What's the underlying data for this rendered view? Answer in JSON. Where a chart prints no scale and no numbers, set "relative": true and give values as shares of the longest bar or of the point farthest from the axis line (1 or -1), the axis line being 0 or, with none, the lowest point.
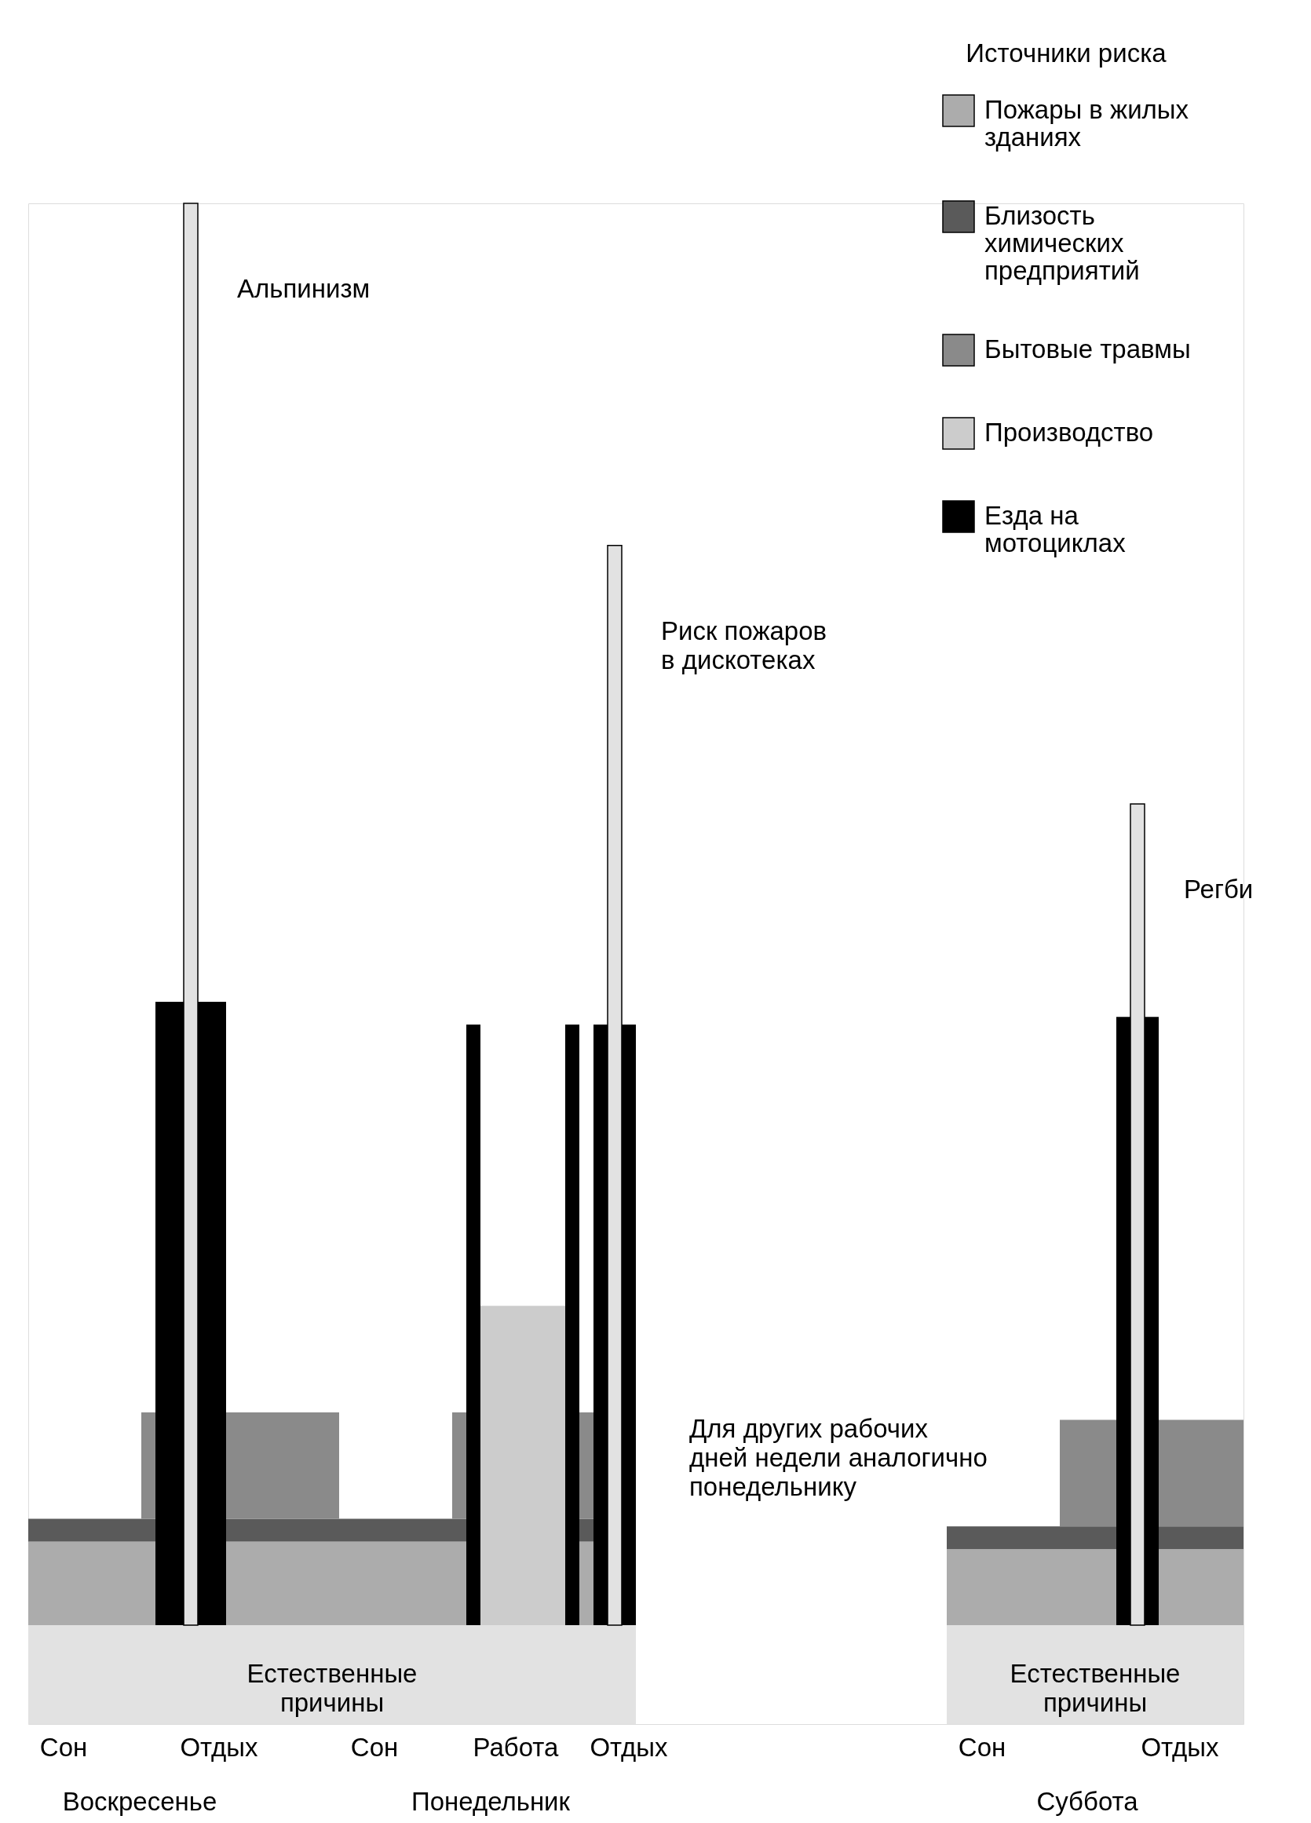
{
  "chart_data": {
    "type": "bar",
    "relative": true,
    "stacked": true,
    "legend": "top right",
    "legend_title": "Источники риска",
    "annotations": [
      "Для других рабочих дней недели аналогично понедельнику",
      "Воскресенье",
      "Понедельник",
      "Суббота"
    ],
    "categories": [
      null,
      null,
      "Сон",
      null,
      null,
      null,
      null,
      null,
      null,
      null,
      null,
      null,
      null,
      "Отдых",
      null,
      null,
      null,
      null,
      null,
      null,
      null,
      null,
      null,
      null,
      "Сон",
      null,
      null,
      null,
      null,
      null,
      null,
      null,
      null,
      null,
      "Работа",
      null,
      null,
      null,
      null,
      null,
      null,
      null,
      "Отдых",
      null,
      null,
      null,
      null,
      null,
      null,
      null,
      null,
      null,
      null,
      null,
      null,
      null,
      null,
      null,
      null,
      null,
      null,
      null,
      null,
      null,
      null,
      null,
      null,
      "Сон",
      null,
      null,
      null,
      null,
      null,
      null,
      null,
      null,
      null,
      null,
      null,
      null,
      null,
      "Отдых",
      null,
      null,
      null,
      null
    ],
    "series": [
      {
        "name": "Естественные причины",
        "color": "#e2e2e2",
        "values": [
          0.065,
          0.065,
          0.065,
          0.065,
          0.065,
          0.065,
          0.065,
          0.065,
          0.065,
          0.065,
          0.065,
          0.065,
          0.065,
          0.065,
          0.065,
          0.065,
          0.065,
          0.065,
          0.065,
          0.065,
          0.065,
          0.065,
          0.065,
          0.065,
          0.065,
          0.065,
          0.065,
          0.065,
          0.065,
          0.065,
          0.065,
          0.065,
          0.065,
          0.065,
          0.065,
          0.065,
          0.065,
          0.065,
          0.065,
          0.065,
          0.065,
          0.065,
          0.065,
          null,
          null,
          null,
          null,
          null,
          null,
          null,
          null,
          null,
          null,
          null,
          null,
          null,
          null,
          null,
          null,
          null,
          null,
          null,
          null,
          null,
          null,
          0.065,
          0.065,
          0.065,
          0.065,
          0.065,
          0.065,
          0.065,
          0.065,
          0.065,
          0.065,
          0.065,
          0.065,
          0.065,
          0.065,
          0.065,
          0.065,
          0.065,
          0.065,
          0.065,
          0.065,
          0.065
        ]
      },
      {
        "name": "Пожары в жилых зданиях",
        "color": "#acacac",
        "values": [
          0.055,
          0.055,
          0.055,
          0.055,
          0.055,
          0.055,
          0.055,
          0.055,
          0.055,
          null,
          null,
          null,
          null,
          null,
          0.055,
          0.055,
          0.055,
          0.055,
          0.055,
          0.055,
          0.055,
          0.055,
          0.055,
          0.055,
          0.055,
          0.055,
          0.055,
          0.055,
          0.055,
          0.055,
          0.055,
          null,
          null,
          null,
          null,
          null,
          null,
          null,
          null,
          0.055,
          null,
          null,
          null,
          null,
          null,
          null,
          null,
          null,
          null,
          null,
          null,
          null,
          null,
          null,
          null,
          null,
          null,
          null,
          null,
          null,
          null,
          null,
          null,
          null,
          null,
          0.05,
          0.05,
          0.05,
          0.05,
          0.05,
          0.05,
          0.05,
          0.05,
          0.05,
          0.05,
          0.05,
          0.05,
          null,
          null,
          null,
          0.05,
          0.05,
          0.05,
          0.05,
          0.05,
          0.05
        ]
      },
      {
        "name": "Близость химических предприятий",
        "color": "#5a5a5a",
        "values": [
          0.015,
          0.015,
          0.015,
          0.015,
          0.015,
          0.015,
          0.015,
          0.015,
          0.015,
          null,
          null,
          null,
          null,
          null,
          0.015,
          0.015,
          0.015,
          0.015,
          0.015,
          0.015,
          0.015,
          0.015,
          0.015,
          0.015,
          0.015,
          0.015,
          0.015,
          0.015,
          0.015,
          0.015,
          0.015,
          null,
          null,
          null,
          null,
          null,
          null,
          null,
          null,
          0.015,
          null,
          null,
          null,
          null,
          null,
          null,
          null,
          null,
          null,
          null,
          null,
          null,
          null,
          null,
          null,
          null,
          null,
          null,
          null,
          null,
          null,
          null,
          null,
          null,
          null,
          0.015,
          0.015,
          0.015,
          0.015,
          0.015,
          0.015,
          0.015,
          0.015,
          0.015,
          0.015,
          0.015,
          0.015,
          null,
          null,
          null,
          0.015,
          0.015,
          0.015,
          0.015,
          0.015,
          0.015
        ]
      },
      {
        "name": "Бытовые травмы",
        "color": "#8a8a8a",
        "values": [
          null,
          null,
          null,
          null,
          null,
          null,
          null,
          null,
          0.07,
          null,
          null,
          null,
          null,
          null,
          0.07,
          0.07,
          0.07,
          0.07,
          0.07,
          0.07,
          0.07,
          0.07,
          null,
          null,
          null,
          null,
          null,
          null,
          null,
          null,
          0.07,
          null,
          null,
          null,
          null,
          null,
          null,
          null,
          null,
          0.07,
          null,
          null,
          null,
          null,
          null,
          null,
          null,
          null,
          null,
          null,
          null,
          null,
          null,
          null,
          null,
          null,
          null,
          null,
          null,
          null,
          null,
          null,
          null,
          null,
          null,
          null,
          null,
          null,
          null,
          null,
          null,
          null,
          null,
          0.07,
          0.07,
          0.07,
          0.07,
          null,
          null,
          null,
          0.07,
          0.07,
          0.07,
          0.07,
          0.07,
          0.07
        ]
      },
      {
        "name": "Производство",
        "color": "#cccccc",
        "values": [
          null,
          null,
          null,
          null,
          null,
          null,
          null,
          null,
          null,
          null,
          null,
          null,
          null,
          null,
          null,
          null,
          null,
          null,
          null,
          null,
          null,
          null,
          null,
          null,
          null,
          null,
          null,
          null,
          null,
          null,
          null,
          null,
          0.21,
          0.21,
          0.21,
          0.21,
          0.21,
          0.21,
          null,
          null,
          null,
          null,
          null,
          null,
          null,
          null,
          null,
          null,
          null,
          null,
          null,
          null,
          null,
          null,
          null,
          null,
          null,
          null,
          null,
          null,
          null,
          null,
          null,
          null,
          null,
          null,
          null,
          null,
          null,
          null,
          null,
          null,
          null,
          null,
          null,
          null,
          null,
          null,
          null,
          null,
          null,
          null,
          null,
          null,
          null,
          null
        ]
      },
      {
        "name": "Езда на мотоциклах",
        "color": "#000000",
        "values": [
          null,
          null,
          null,
          null,
          null,
          null,
          null,
          null,
          null,
          0.41,
          0.41,
          null,
          0.41,
          0.41,
          null,
          null,
          null,
          null,
          null,
          null,
          null,
          null,
          null,
          null,
          null,
          null,
          null,
          null,
          null,
          null,
          null,
          0.395,
          null,
          null,
          null,
          null,
          null,
          null,
          0.395,
          null,
          0.395,
          null,
          0.395,
          null,
          null,
          null,
          null,
          null,
          null,
          null,
          null,
          null,
          null,
          null,
          null,
          null,
          null,
          null,
          null,
          null,
          null,
          null,
          null,
          null,
          null,
          null,
          null,
          null,
          null,
          null,
          null,
          null,
          null,
          null,
          null,
          null,
          null,
          0.4,
          null,
          0.4,
          null,
          null,
          null,
          null,
          null,
          null
        ]
      },
      {
        "name": "Альпинизм",
        "color": "#e2e2e2",
        "values": [
          null,
          null,
          null,
          null,
          null,
          null,
          null,
          null,
          null,
          null,
          null,
          0.935,
          null,
          null,
          null,
          null,
          null,
          null,
          null,
          null,
          null,
          null,
          null,
          null,
          null,
          null,
          null,
          null,
          null,
          null,
          null,
          null,
          null,
          null,
          null,
          null,
          null,
          null,
          null,
          null,
          null,
          null,
          null,
          null,
          null,
          null,
          null,
          null,
          null,
          null,
          null,
          null,
          null,
          null,
          null,
          null,
          null,
          null,
          null,
          null,
          null,
          null,
          null,
          null,
          null,
          null,
          null,
          null,
          null,
          null,
          null,
          null,
          null,
          null,
          null,
          null,
          null,
          null,
          null,
          null,
          null,
          null,
          null,
          null,
          null,
          null
        ]
      },
      {
        "name": "Риск пожаров в дискотеках",
        "color": "#e2e2e2",
        "values": [
          null,
          null,
          null,
          null,
          null,
          null,
          null,
          null,
          null,
          null,
          null,
          null,
          null,
          null,
          null,
          null,
          null,
          null,
          null,
          null,
          null,
          null,
          null,
          null,
          null,
          null,
          null,
          null,
          null,
          null,
          null,
          null,
          null,
          null,
          null,
          null,
          null,
          null,
          null,
          null,
          null,
          0.71,
          null,
          null,
          null,
          null,
          null,
          null,
          null,
          null,
          null,
          null,
          null,
          null,
          null,
          null,
          null,
          null,
          null,
          null,
          null,
          null,
          null,
          null,
          null,
          null,
          null,
          null,
          null,
          null,
          null,
          null,
          null,
          null,
          null,
          null,
          null,
          null,
          null,
          null,
          null,
          null,
          null,
          null,
          null,
          null
        ]
      },
      {
        "name": "Регби",
        "color": "#e2e2e2",
        "values": [
          null,
          null,
          null,
          null,
          null,
          null,
          null,
          null,
          null,
          null,
          null,
          null,
          null,
          null,
          null,
          null,
          null,
          null,
          null,
          null,
          null,
          null,
          null,
          null,
          null,
          null,
          null,
          null,
          null,
          null,
          null,
          null,
          null,
          null,
          null,
          null,
          null,
          null,
          null,
          null,
          null,
          null,
          null,
          null,
          null,
          null,
          null,
          null,
          null,
          null,
          null,
          null,
          null,
          null,
          null,
          null,
          null,
          null,
          null,
          null,
          null,
          null,
          null,
          null,
          null,
          null,
          null,
          null,
          null,
          null,
          null,
          null,
          null,
          null,
          null,
          null,
          null,
          null,
          0.54,
          null,
          null,
          null,
          null,
          null,
          null,
          null
        ]
      }
    ]
  }
}
